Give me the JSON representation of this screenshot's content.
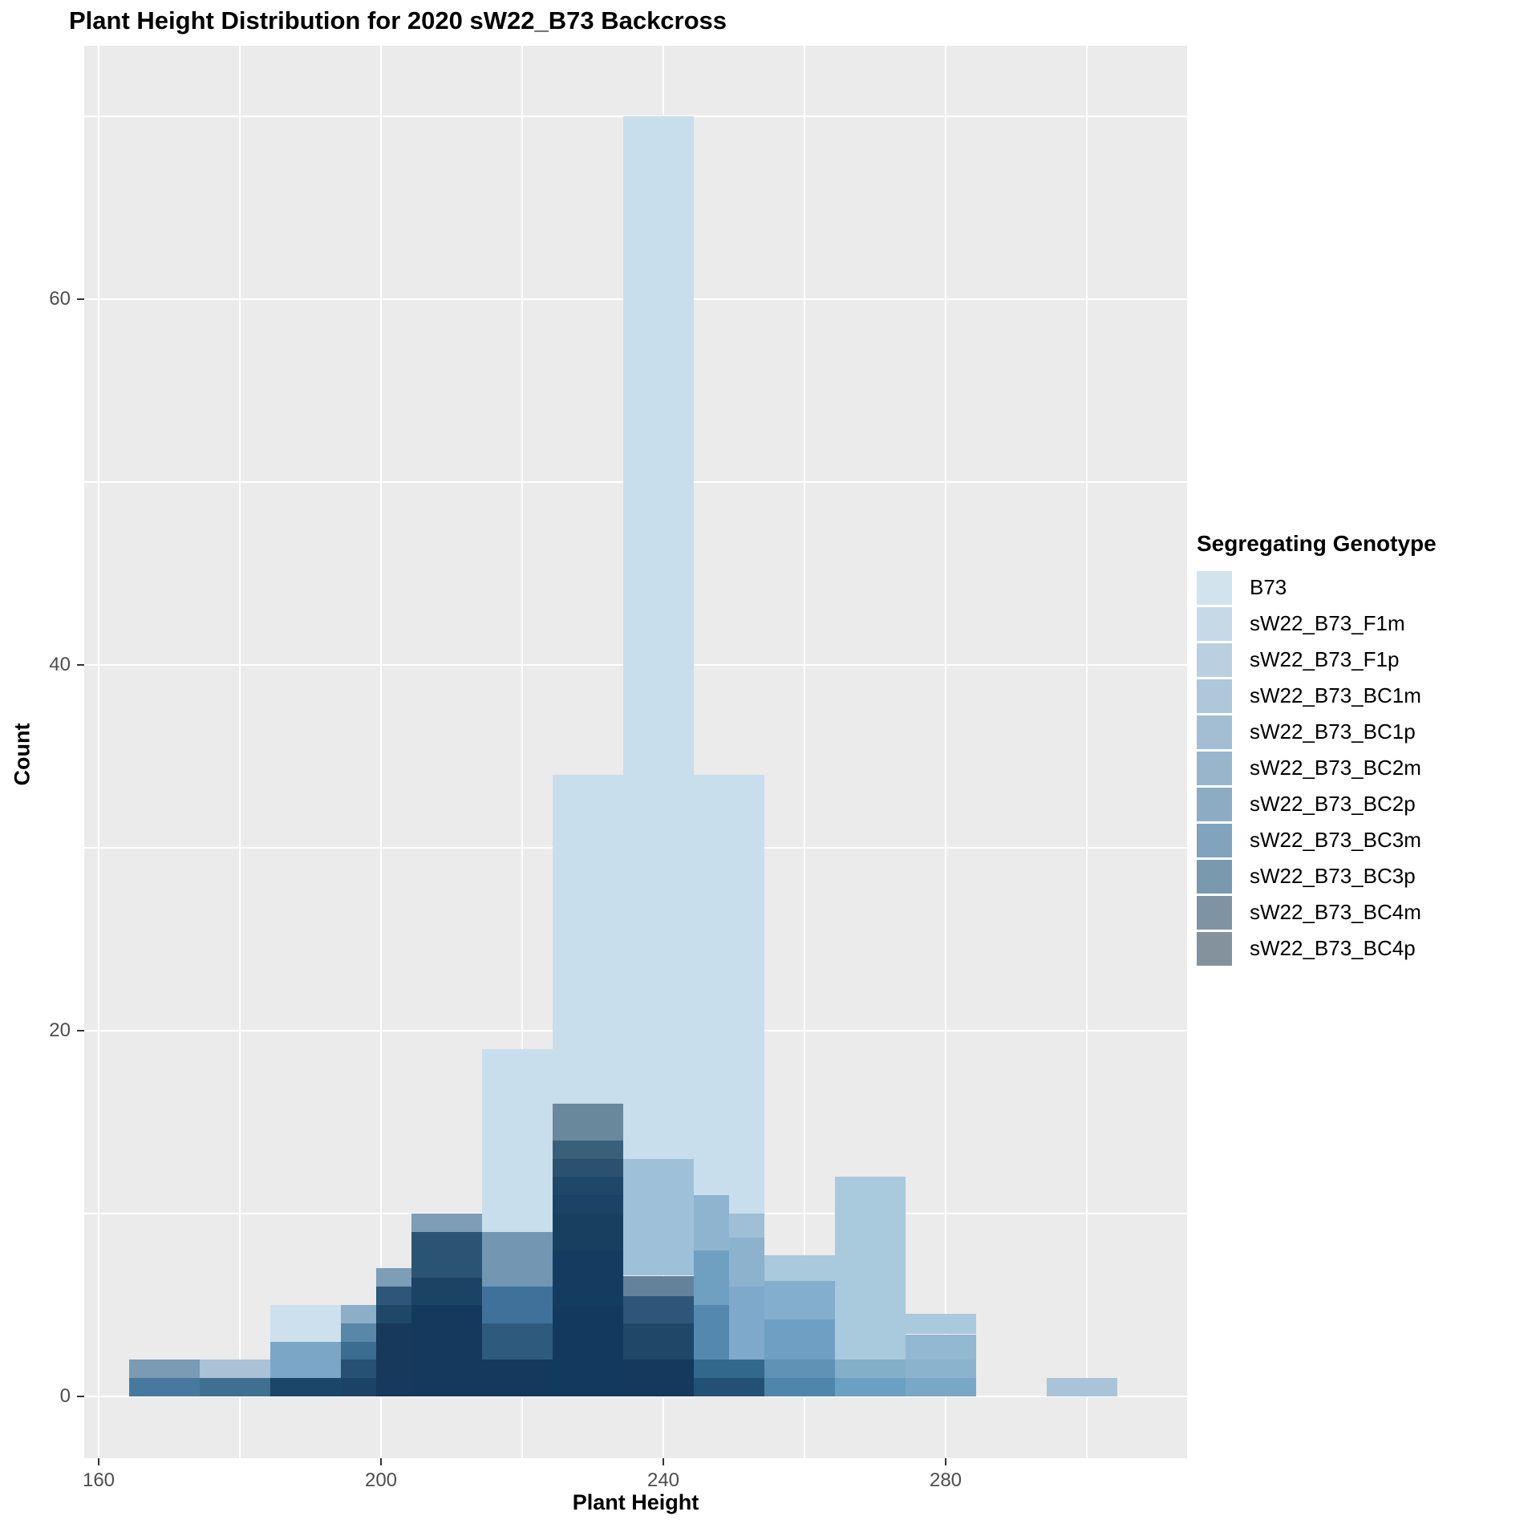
{
  "title": "Plant Height Distribution for 2020 sW22_B73 Backcross",
  "axes": {
    "x": {
      "label": "Plant Height",
      "major_ticks": [
        160,
        200,
        240,
        280
      ],
      "minor_gridlines": [
        180,
        220,
        260,
        300
      ]
    },
    "y": {
      "label": "Count",
      "major_ticks": [
        0,
        20,
        40,
        60
      ],
      "minor_gridlines": [
        10,
        30,
        50,
        70
      ]
    }
  },
  "legend": {
    "title": "Segregating Genotype",
    "items": [
      {
        "label": "B73",
        "color": "#D2E3EE"
      },
      {
        "label": "sW22_B73_F1m",
        "color": "#C6D9E7"
      },
      {
        "label": "sW22_B73_F1p",
        "color": "#BAD0E0"
      },
      {
        "label": "sW22_B73_BC1m",
        "color": "#AFC7DA"
      },
      {
        "label": "sW22_B73_BC1p",
        "color": "#A3BED3"
      },
      {
        "label": "sW22_B73_BC2m",
        "color": "#98B5CB"
      },
      {
        "label": "sW22_B73_BC2p",
        "color": "#8CACC4"
      },
      {
        "label": "sW22_B73_BC3m",
        "color": "#81A3BD"
      },
      {
        "label": "sW22_B73_BC3p",
        "color": "#7899AE"
      },
      {
        "label": "sW22_B73_BC4m",
        "color": "#7E94A5"
      },
      {
        "label": "sW22_B73_BC4p",
        "color": "#84929E"
      }
    ]
  },
  "colors": {
    "panel_background": "#EBEBEB",
    "gridline": "#FFFFFF",
    "tick_label": "#4D4D4D",
    "lightest_bar": "#C9DEEC",
    "darkest_overlap": "#14395C"
  },
  "chart_data": {
    "type": "bar",
    "variant": "overlaid-alpha-histogram",
    "title": "Plant Height Distribution for 2020 sW22_B73 Backcross",
    "xlabel": "Plant Height",
    "ylabel": "Count",
    "xlim": [
      158,
      314
    ],
    "ylim": [
      0,
      70
    ],
    "x_ticks": [
      160,
      200,
      240,
      280
    ],
    "y_ticks": [
      0,
      20,
      40,
      60
    ],
    "grid": true,
    "legend_position": "right",
    "bin_width": 5,
    "note": "Eleven genotype histograms drawn overlapping with transparency; segments below are the visible color bands (counts from,to,hex) read from the rendered plot, bottom to top.",
    "bins": [
      {
        "x_start": 165,
        "total": 2,
        "segments": [
          [
            0,
            1,
            "#47799E"
          ],
          [
            1,
            2,
            "#7B9AB3"
          ]
        ]
      },
      {
        "x_start": 170,
        "total": 2,
        "segments": [
          [
            0,
            1,
            "#47799E"
          ],
          [
            1,
            2,
            "#7B9AB3"
          ]
        ]
      },
      {
        "x_start": 175,
        "total": 2,
        "segments": [
          [
            0,
            1,
            "#3F7092"
          ],
          [
            1,
            2,
            "#A9C2D6"
          ]
        ]
      },
      {
        "x_start": 180,
        "total": 2,
        "segments": [
          [
            0,
            1,
            "#3F7092"
          ],
          [
            1,
            2,
            "#A9C2D6"
          ]
        ]
      },
      {
        "x_start": 185,
        "total": 5,
        "segments": [
          [
            0,
            1,
            "#1C456A"
          ],
          [
            1,
            3,
            "#7CA6C6"
          ],
          [
            3,
            5,
            "#CDE0ED"
          ]
        ]
      },
      {
        "x_start": 190,
        "total": 5,
        "segments": [
          [
            0,
            1,
            "#1C456A"
          ],
          [
            1,
            3,
            "#7CA6C6"
          ],
          [
            3,
            5,
            "#CDE0ED"
          ]
        ]
      },
      {
        "x_start": 195,
        "total": 5,
        "segments": [
          [
            0,
            1,
            "#1D4266"
          ],
          [
            1,
            2,
            "#275074"
          ],
          [
            2,
            3,
            "#3A6D90"
          ],
          [
            3,
            4,
            "#5A87A8"
          ],
          [
            4,
            5,
            "#8CAEC9"
          ]
        ]
      },
      {
        "x_start": 200,
        "total": 7,
        "segments": [
          [
            0,
            4,
            "#16395C"
          ],
          [
            4,
            5,
            "#1F4868"
          ],
          [
            5,
            6,
            "#2E5679"
          ],
          [
            6,
            7,
            "#7E9DB6"
          ]
        ]
      },
      {
        "x_start": 205,
        "total": 10,
        "segments": [
          [
            0,
            5,
            "#15395C"
          ],
          [
            5,
            6.5,
            "#1C4264"
          ],
          [
            6.5,
            9,
            "#2B5474"
          ],
          [
            9,
            10,
            "#7E9DB6"
          ]
        ]
      },
      {
        "x_start": 210,
        "total": 10,
        "segments": [
          [
            0,
            5,
            "#15395C"
          ],
          [
            5,
            6.5,
            "#1C4264"
          ],
          [
            6.5,
            9,
            "#2B5474"
          ],
          [
            9,
            10,
            "#7E9DB6"
          ]
        ]
      },
      {
        "x_start": 215,
        "total": 19,
        "segments": [
          [
            0,
            2,
            "#14395C"
          ],
          [
            2,
            4,
            "#2E5A7E"
          ],
          [
            4,
            6,
            "#40719A"
          ],
          [
            6,
            9,
            "#7397B3"
          ],
          [
            9,
            19,
            "#C9DEEC"
          ]
        ]
      },
      {
        "x_start": 220,
        "total": 19,
        "segments": [
          [
            0,
            2,
            "#14395C"
          ],
          [
            2,
            4,
            "#2E5A7E"
          ],
          [
            4,
            6,
            "#40719A"
          ],
          [
            6,
            9,
            "#7397B3"
          ],
          [
            9,
            19,
            "#C9DEEC"
          ]
        ]
      },
      {
        "x_start": 225,
        "total": 34,
        "segments": [
          [
            0,
            5,
            "#133A5E"
          ],
          [
            5,
            8,
            "#143C60"
          ],
          [
            8,
            10,
            "#17405F"
          ],
          [
            10,
            11,
            "#1B4365"
          ],
          [
            11,
            12,
            "#1F4767"
          ],
          [
            12,
            13,
            "#2C516F"
          ],
          [
            13,
            14,
            "#3A5F79"
          ],
          [
            14,
            16,
            "#69889C"
          ],
          [
            16,
            34,
            "#C9DEEC"
          ]
        ]
      },
      {
        "x_start": 230,
        "total": 34,
        "segments": [
          [
            0,
            5,
            "#133A5E"
          ],
          [
            5,
            8,
            "#143C60"
          ],
          [
            8,
            10,
            "#17405F"
          ],
          [
            10,
            11,
            "#1B4365"
          ],
          [
            11,
            12,
            "#1F4767"
          ],
          [
            12,
            13,
            "#2C516F"
          ],
          [
            13,
            14,
            "#3A5F79"
          ],
          [
            14,
            16,
            "#69889C"
          ],
          [
            16,
            34,
            "#C9DEEC"
          ]
        ]
      },
      {
        "x_start": 235,
        "total": 70,
        "segments": [
          [
            0,
            2,
            "#14395C"
          ],
          [
            2,
            4,
            "#1F4868"
          ],
          [
            4,
            5.5,
            "#2E5679"
          ],
          [
            5.5,
            6.6,
            "#64839B"
          ],
          [
            6.6,
            13,
            "#9FC0D9"
          ],
          [
            13,
            70,
            "#C9DEEC"
          ]
        ]
      },
      {
        "x_start": 240,
        "total": 70,
        "segments": [
          [
            0,
            2,
            "#14395C"
          ],
          [
            2,
            4,
            "#1F4868"
          ],
          [
            4,
            5.5,
            "#2E5679"
          ],
          [
            5.5,
            6.6,
            "#64839B"
          ],
          [
            6.6,
            13,
            "#9FC0D9"
          ],
          [
            13,
            70,
            "#C9DEEC"
          ]
        ]
      },
      {
        "x_start": 245,
        "total": 34,
        "segments": [
          [
            0,
            1,
            "#235176"
          ],
          [
            1,
            2,
            "#33688D"
          ],
          [
            2,
            5,
            "#5488AE"
          ],
          [
            5,
            8,
            "#6FA0C1"
          ],
          [
            8,
            11,
            "#8FB4D0"
          ],
          [
            11,
            34,
            "#C9DEEC"
          ]
        ]
      },
      {
        "x_start": 250,
        "total": 34,
        "segments": [
          [
            0,
            1,
            "#235176"
          ],
          [
            1,
            2,
            "#33688D"
          ],
          [
            2,
            6,
            "#7FA9CB"
          ],
          [
            6,
            8.7,
            "#8CB2CE"
          ],
          [
            8.7,
            10,
            "#9FBFD6"
          ],
          [
            10,
            34,
            "#C9DEEC"
          ]
        ]
      },
      {
        "x_start": 255,
        "total": 7.7,
        "segments": [
          [
            0,
            1,
            "#4E85AB"
          ],
          [
            1,
            2,
            "#5F92B5"
          ],
          [
            2,
            4.2,
            "#6FA0C4"
          ],
          [
            4.2,
            6.3,
            "#84AECD"
          ],
          [
            6.3,
            7.7,
            "#A9C9DC"
          ]
        ]
      },
      {
        "x_start": 260,
        "total": 7.7,
        "segments": [
          [
            0,
            1,
            "#4E85AB"
          ],
          [
            1,
            2,
            "#5F92B5"
          ],
          [
            2,
            4.2,
            "#6FA0C4"
          ],
          [
            4.2,
            6.3,
            "#84AECD"
          ],
          [
            6.3,
            7.7,
            "#A9C9DC"
          ]
        ]
      },
      {
        "x_start": 265,
        "total": 12,
        "segments": [
          [
            0,
            1,
            "#6BA0C2"
          ],
          [
            1,
            2,
            "#84AFC9"
          ],
          [
            2,
            12,
            "#A9C9DC"
          ]
        ]
      },
      {
        "x_start": 270,
        "total": 12,
        "segments": [
          [
            0,
            1,
            "#6BA0C2"
          ],
          [
            1,
            2,
            "#84AFC9"
          ],
          [
            2,
            12,
            "#A9C9DC"
          ]
        ]
      },
      {
        "x_start": 275,
        "total": 4.5,
        "segments": [
          [
            0,
            1,
            "#79A8C6"
          ],
          [
            1,
            2,
            "#8BB3CD"
          ],
          [
            2,
            3.4,
            "#93B8D1"
          ],
          [
            3.4,
            4.5,
            "#A9C9DC"
          ]
        ]
      },
      {
        "x_start": 280,
        "total": 4.5,
        "segments": [
          [
            0,
            1,
            "#79A8C6"
          ],
          [
            1,
            2,
            "#8BB3CD"
          ],
          [
            2,
            3.4,
            "#93B8D1"
          ],
          [
            3.4,
            4.5,
            "#A9C9DC"
          ]
        ]
      },
      {
        "x_start": 285,
        "total": 0,
        "segments": []
      },
      {
        "x_start": 290,
        "total": 0,
        "segments": []
      },
      {
        "x_start": 295,
        "total": 1,
        "segments": [
          [
            0,
            1,
            "#A9C4D8"
          ]
        ]
      },
      {
        "x_start": 300,
        "total": 1,
        "segments": [
          [
            0,
            1,
            "#A9C4D8"
          ]
        ]
      }
    ]
  }
}
